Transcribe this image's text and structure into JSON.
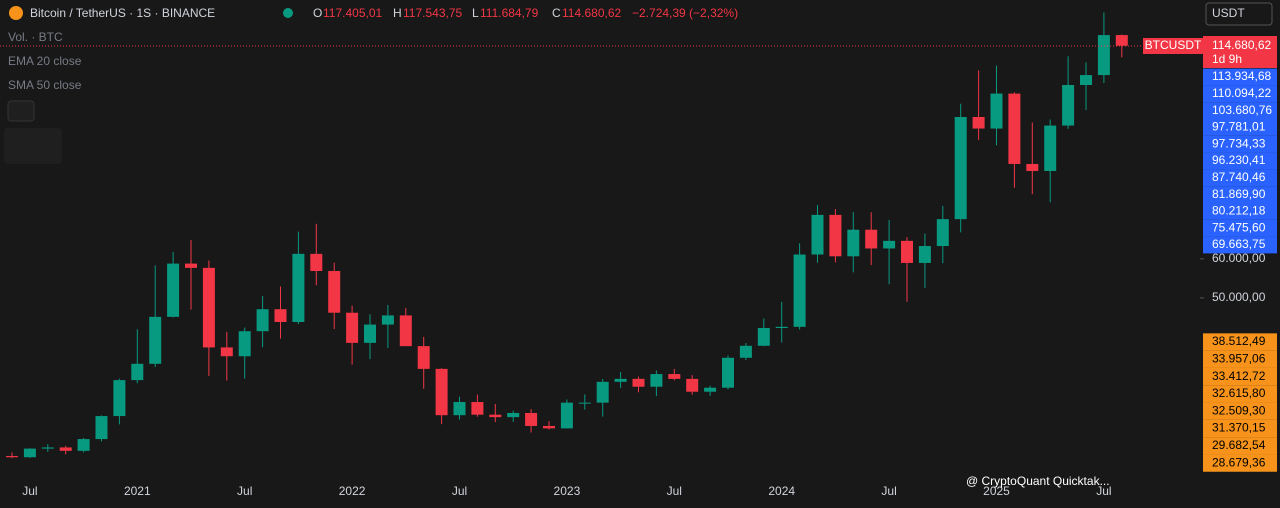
{
  "header": {
    "symbol": "Bitcoin / TetherUS · 1S · BINANCE",
    "open_key": "O",
    "open": "117.405,01",
    "high_key": "H",
    "high": "117.543,75",
    "low_key": "L",
    "low": "111.684,79",
    "close_key": "C",
    "close": "114.680,62",
    "change": "−2.724,39 (−2,32%)",
    "indicators": [
      "Vol. · BTC",
      "EMA 20 close",
      "SMA 50 close"
    ],
    "currency": "USDT",
    "badge_symbol": "BTCUSDT",
    "badge_price": "114.680,62",
    "badge_timer": "1d 9h",
    "watermark": "@ CryptoQuant Quicktak..."
  },
  "chart_data": {
    "type": "candlestick",
    "categories": [
      null,
      "Jul",
      null,
      null,
      null,
      null,
      null,
      "2021",
      null,
      null,
      null,
      null,
      null,
      "Jul",
      null,
      null,
      null,
      null,
      null,
      "2022",
      null,
      null,
      null,
      null,
      null,
      "Jul",
      null,
      null,
      null,
      null,
      null,
      "2023",
      null,
      null,
      null,
      null,
      null,
      "Jul",
      null,
      null,
      null,
      null,
      null,
      "2024",
      null,
      null,
      null,
      null,
      null,
      "Jul",
      null,
      null,
      null,
      null,
      null,
      "2025",
      null,
      null,
      null,
      null,
      null,
      "Jul",
      null
    ],
    "open": [
      9450,
      9140,
      11350,
      11650,
      10780,
      13800,
      19700,
      28920,
      33100,
      45140,
      58800,
      57700,
      37300,
      35040,
      41460,
      47100,
      43820,
      61300,
      56900,
      46200,
      38470,
      43160,
      45510,
      37630,
      31800,
      19920,
      23300,
      20050,
      19420,
      20490,
      17160,
      16540,
      23130,
      23140,
      28480,
      29240,
      27220,
      30470,
      29230,
      25940,
      26970,
      34640,
      37720,
      42280,
      42580,
      61130,
      71290,
      60670,
      67490,
      62680,
      64630,
      58970,
      63300,
      70200,
      96400,
      93430,
      102400,
      84350,
      82550,
      94200,
      104600,
      107150,
      117405.01
    ],
    "high": [
      10380,
      11450,
      12470,
      12070,
      14100,
      19860,
      29300,
      41950,
      58350,
      61790,
      64850,
      59600,
      41300,
      42400,
      50500,
      52920,
      67000,
      69000,
      59050,
      47990,
      45800,
      48190,
      47440,
      40000,
      31980,
      24670,
      25200,
      22800,
      21080,
      21480,
      18390,
      23950,
      25250,
      29190,
      31000,
      29820,
      31390,
      31800,
      30200,
      27480,
      35200,
      38450,
      44730,
      48970,
      64000,
      73800,
      72800,
      71980,
      71960,
      70000,
      65600,
      66500,
      73600,
      99800,
      108350,
      109580,
      102750,
      95000,
      95750,
      111980,
      110400,
      123200,
      117543.75
    ],
    "low": [
      8900,
      8990,
      10550,
      9880,
      10380,
      13200,
      17570,
      28130,
      32300,
      45000,
      47000,
      30000,
      28800,
      29280,
      37330,
      39600,
      43280,
      53250,
      42000,
      32900,
      34300,
      37150,
      37580,
      26700,
      17620,
      18780,
      19520,
      18150,
      18200,
      15480,
      16260,
      16500,
      21350,
      19550,
      26940,
      25810,
      24800,
      28860,
      25160,
      24900,
      26550,
      34080,
      37600,
      38550,
      41880,
      59000,
      59120,
      56550,
      58400,
      53500,
      49000,
      52550,
      58900,
      66800,
      90500,
      89160,
      78250,
      76600,
      74500,
      93350,
      98200,
      105100,
      111684.79
    ],
    "close": [
      9140,
      11350,
      11650,
      10780,
      13800,
      19700,
      28920,
      33100,
      45140,
      58800,
      57700,
      37300,
      35040,
      41460,
      47100,
      43820,
      61300,
      56900,
      46200,
      38470,
      43160,
      45510,
      37630,
      31800,
      19920,
      23300,
      20050,
      19420,
      20490,
      17160,
      16540,
      23130,
      23140,
      28480,
      29240,
      27220,
      30470,
      29230,
      25940,
      26970,
      34640,
      37720,
      42280,
      42580,
      61130,
      71290,
      60670,
      67490,
      62680,
      64630,
      58970,
      63300,
      70200,
      96400,
      93430,
      102400,
      84350,
      82550,
      94200,
      104600,
      107150,
      117405.01,
      114680.62
    ],
    "up_color": "#089981",
    "down_color": "#f23645",
    "ylim": [
      3300,
      126400
    ],
    "yticks": [
      {
        "value": 50000,
        "label": "50.000,00"
      },
      {
        "value": 60000,
        "label": "60.000,00"
      }
    ],
    "blue_levels": [
      {
        "value": 113934.68,
        "label": "113.934,68"
      },
      {
        "value": 110094.22,
        "label": "110.094,22"
      },
      {
        "value": 103680.76,
        "label": "103.680,76"
      },
      {
        "value": 97781.01,
        "label": "97.781,01"
      },
      {
        "value": 97734.33,
        "label": "97.734,33"
      },
      {
        "value": 96230.41,
        "label": "96.230,41"
      },
      {
        "value": 87740.46,
        "label": "87.740,46"
      },
      {
        "value": 81869.9,
        "label": "81.869,90"
      },
      {
        "value": 80212.18,
        "label": "80.212,18"
      },
      {
        "value": 75475.6,
        "label": "75.475,60"
      },
      {
        "value": 69663.75,
        "label": "69.663,75"
      }
    ],
    "orange_levels": [
      {
        "value": 38512.49,
        "label": "38.512,49"
      },
      {
        "value": 33957.06,
        "label": "33.957,06"
      },
      {
        "value": 33412.72,
        "label": "33.412,72"
      },
      {
        "value": 32615.8,
        "label": "32.615,80"
      },
      {
        "value": 32509.3,
        "label": "32.509,30"
      },
      {
        "value": 31370.15,
        "label": "31.370,15"
      },
      {
        "value": 29682.54,
        "label": "29.682,54"
      },
      {
        "value": 28679.36,
        "label": "28.679,36"
      }
    ],
    "blue_color": "#2962ff",
    "orange_color": "#f7931a"
  }
}
